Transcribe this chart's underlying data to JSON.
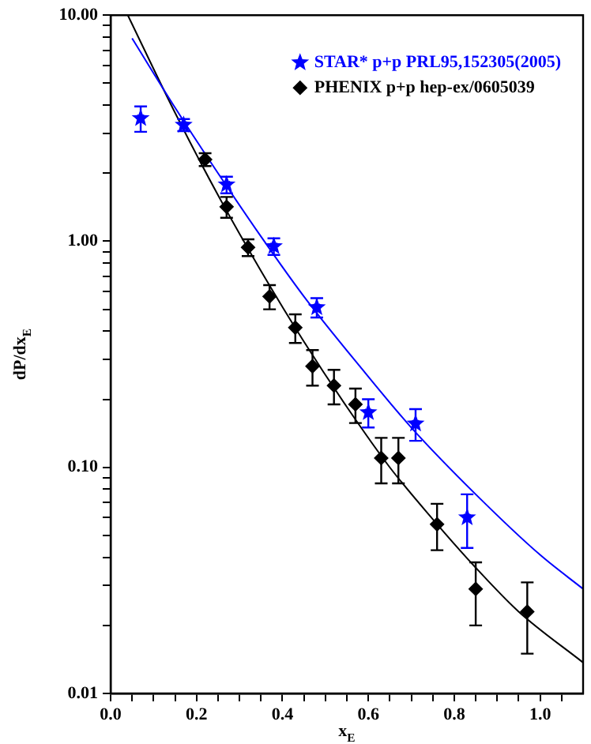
{
  "chart_data": {
    "type": "scatter",
    "xlabel": "x$_{E}$",
    "ylabel": "dP/dx$_{E}$",
    "log": "y",
    "legend": "top right",
    "grid": false,
    "xlim": [
      0,
      1.1
    ],
    "ylim": [
      0.01,
      10
    ],
    "xticks": [
      {
        "value": 0,
        "label": "0.0"
      },
      {
        "value": 0.05,
        "label": null
      },
      {
        "value": 0.1,
        "label": null
      },
      {
        "value": 0.15,
        "label": null
      },
      {
        "value": 0.2,
        "label": "0.2"
      },
      {
        "value": 0.25,
        "label": null
      },
      {
        "value": 0.3,
        "label": null
      },
      {
        "value": 0.35,
        "label": null
      },
      {
        "value": 0.4,
        "label": "0.4"
      },
      {
        "value": 0.45,
        "label": null
      },
      {
        "value": 0.5,
        "label": null
      },
      {
        "value": 0.55,
        "label": null
      },
      {
        "value": 0.6,
        "label": "0.6"
      },
      {
        "value": 0.65,
        "label": null
      },
      {
        "value": 0.7,
        "label": null
      },
      {
        "value": 0.75,
        "label": null
      },
      {
        "value": 0.8,
        "label": "0.8"
      },
      {
        "value": 0.85,
        "label": null
      },
      {
        "value": 0.9,
        "label": null
      },
      {
        "value": 0.95,
        "label": null
      },
      {
        "value": 1,
        "label": "1.0"
      },
      {
        "value": 1.05,
        "label": null
      }
    ],
    "yticks": [
      {
        "value": 0.01,
        "label": "0.01"
      },
      {
        "value": 0.02,
        "label": null
      },
      {
        "value": 0.03,
        "label": null
      },
      {
        "value": 0.04,
        "label": null
      },
      {
        "value": 0.05,
        "label": null
      },
      {
        "value": 0.06,
        "label": null
      },
      {
        "value": 0.07,
        "label": null
      },
      {
        "value": 0.08,
        "label": null
      },
      {
        "value": 0.09,
        "label": null
      },
      {
        "value": 0.1,
        "label": "0.10"
      },
      {
        "value": 0.2,
        "label": null
      },
      {
        "value": 0.3,
        "label": null
      },
      {
        "value": 0.4,
        "label": null
      },
      {
        "value": 0.5,
        "label": null
      },
      {
        "value": 0.6,
        "label": null
      },
      {
        "value": 0.7,
        "label": null
      },
      {
        "value": 0.8,
        "label": null
      },
      {
        "value": 0.9,
        "label": null
      },
      {
        "value": 1,
        "label": "1.00"
      },
      {
        "value": 2,
        "label": null
      },
      {
        "value": 3,
        "label": null
      },
      {
        "value": 4,
        "label": null
      },
      {
        "value": 5,
        "label": null
      },
      {
        "value": 6,
        "label": null
      },
      {
        "value": 7,
        "label": null
      },
      {
        "value": 8,
        "label": null
      },
      {
        "value": 9,
        "label": null
      },
      {
        "value": 10,
        "label": "10.00"
      }
    ],
    "series": [
      {
        "name": "STAR* p+p PRL95,152305(2005)",
        "marker": "star",
        "color": "#0000ff",
        "x": [
          0.07,
          0.17,
          0.27,
          0.38,
          0.48,
          0.6,
          0.71,
          0.83
        ],
        "values": [
          3.5,
          3.27,
          1.78,
          0.95,
          0.51,
          0.175,
          0.156,
          0.06
        ],
        "errors": [
          0.45,
          0.2,
          0.15,
          0.08,
          0.05,
          0.025,
          0.025,
          [
            0.044,
            0.076
          ]
        ]
      },
      {
        "name": "PHENIX p+p hep-ex/0605039",
        "marker": "diamond",
        "color": "#000000",
        "x": [
          0.22,
          0.27,
          0.32,
          0.37,
          0.43,
          0.47,
          0.52,
          0.57,
          0.63,
          0.67,
          0.76,
          0.85,
          0.97
        ],
        "values": [
          2.3,
          1.42,
          0.94,
          0.57,
          0.415,
          0.28,
          0.23,
          0.19,
          0.11,
          0.11,
          0.056,
          0.029,
          0.023
        ],
        "errors": [
          0.15,
          0.15,
          0.08,
          0.07,
          0.06,
          0.05,
          0.04,
          0.033,
          0.025,
          0.025,
          [
            0.043,
            0.069
          ],
          [
            0.02,
            0.038
          ],
          [
            0.015,
            0.031
          ]
        ]
      },
      {
        "type": "line",
        "marker": "none",
        "color": "#0000ff",
        "x": [
          0.05,
          0.15,
          0.25,
          0.35,
          0.45,
          0.58,
          0.7,
          0.85,
          1.0,
          1.1
        ],
        "values": [
          7.9,
          3.9,
          2.0,
          1.05,
          0.57,
          0.28,
          0.15,
          0.076,
          0.041,
          0.029
        ]
      },
      {
        "type": "line",
        "marker": "none",
        "color": "#000000",
        "x": [
          0.04,
          0.15,
          0.25,
          0.35,
          0.45,
          0.55,
          0.65,
          0.75,
          0.85,
          0.95,
          1.1
        ],
        "values": [
          10,
          3.7,
          1.6,
          0.74,
          0.36,
          0.185,
          0.1,
          0.059,
          0.036,
          0.023,
          0.0137
        ]
      }
    ]
  }
}
